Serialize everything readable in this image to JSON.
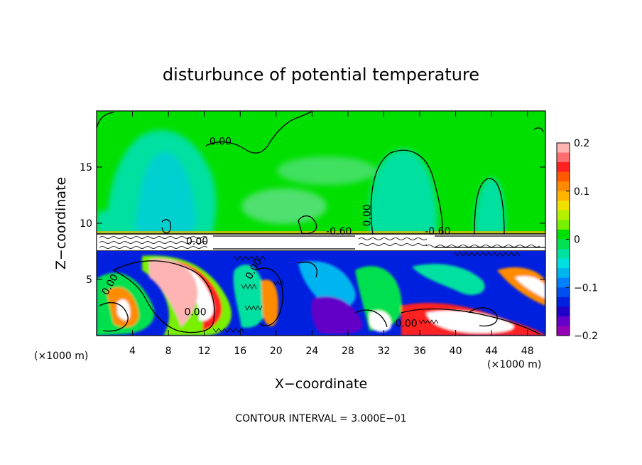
{
  "chart_data": {
    "type": "heatmap",
    "title": "disturbunce of potential temperature",
    "xlabel": "X−coordinate",
    "ylabel": "Z−coordinate",
    "x_unit_left": "(×1000 m)",
    "x_unit_right": "(×1000 m)",
    "footer": "CONTOUR INTERVAL = 3.000E−01",
    "xlim": [
      0,
      50
    ],
    "ylim": [
      0,
      20
    ],
    "x_ticks": [
      4,
      8,
      12,
      16,
      20,
      24,
      28,
      32,
      36,
      40,
      44,
      48
    ],
    "y_ticks": [
      5,
      10,
      15
    ],
    "contour_labels": [
      {
        "text": "0.00",
        "x": 13.8,
        "y": 17.0
      },
      {
        "text": "0.00",
        "x": 30.5,
        "y": 10.7,
        "rotate": -90
      },
      {
        "text": "0.00",
        "x": 11.2,
        "y": 8.1
      },
      {
        "text": "-0.60",
        "x": 27.0,
        "y": 9.0
      },
      {
        "text": "-0.60",
        "x": 38.0,
        "y": 9.0
      },
      {
        "text": "0.00",
        "x": 11.0,
        "y": 1.8
      },
      {
        "text": "0.00",
        "x": 34.5,
        "y": 0.8
      },
      {
        "text": "0.00",
        "x": 17.8,
        "y": 5.8,
        "rotate": -60
      },
      {
        "text": "0.00",
        "x": 1.8,
        "y": 4.4,
        "rotate": -60
      }
    ],
    "colorbar": {
      "min": -0.2,
      "max": 0.2,
      "tick_values": [
        0.2,
        0.1,
        0,
        -0.1,
        -0.2
      ],
      "tick_labels": [
        "0.2",
        "0.1",
        "0",
        "−0.1",
        "−0.2"
      ],
      "colors": [
        "#ffb4b4",
        "#ff6e6e",
        "#ff2020",
        "#ff5a00",
        "#ff8c00",
        "#ffb400",
        "#f0e000",
        "#b4f000",
        "#78f000",
        "#00e000",
        "#00e050",
        "#00e0a0",
        "#00e0e0",
        "#00b4f0",
        "#0080ff",
        "#0050f0",
        "#0020e0",
        "#2000c8",
        "#6400c8",
        "#9600b4"
      ]
    },
    "regions": {
      "upper_background": "#00e000",
      "plume_color": "#00e0a0",
      "plume_core": "#00d0d0",
      "layer_band": "#ffffff",
      "lower_background": "#0020e0"
    }
  }
}
